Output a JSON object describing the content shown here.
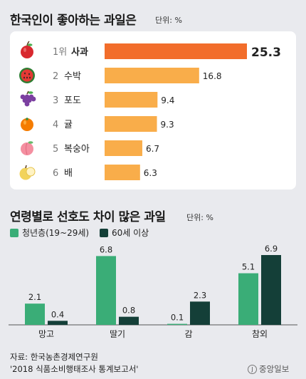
{
  "title1": "한국인이 좋아하는 과일은",
  "unit1": "단위: %",
  "title2": "연령별로 선호도 차이 많은 과일",
  "unit2": "단위: %",
  "legend": {
    "young": "청년층(19~29세)",
    "old": "60세 이상"
  },
  "colors": {
    "top_bar": "#f26d2b",
    "other_bars": "#f9ad4a",
    "young": "#3aad77",
    "old": "#143f38"
  },
  "chart_data": [
    {
      "type": "bar",
      "orientation": "horizontal",
      "title": "한국인이 좋아하는 과일은",
      "unit": "단위: %",
      "categories": [
        "사과",
        "수박",
        "포도",
        "귤",
        "복숭아",
        "배"
      ],
      "ranks": [
        "1위",
        "2",
        "3",
        "4",
        "5",
        "6"
      ],
      "icons": [
        "apple-icon",
        "watermelon-icon",
        "grape-icon",
        "tangerine-icon",
        "peach-icon",
        "pear-icon"
      ],
      "values": [
        25.3,
        16.8,
        9.4,
        9.3,
        6.7,
        6.3
      ],
      "value_labels": [
        "25.3",
        "16.8",
        "9.4",
        "9.3",
        "6.7",
        "6.3"
      ],
      "xlim": [
        0,
        25.3
      ]
    },
    {
      "type": "bar",
      "title": "연령별로 선호도 차이 많은 과일",
      "unit": "단위: %",
      "categories": [
        "망고",
        "딸기",
        "감",
        "참외"
      ],
      "series": [
        {
          "name": "청년층(19~29세)",
          "values": [
            2.1,
            6.8,
            0.1,
            5.1
          ],
          "labels": [
            "2.1",
            "6.8",
            "0.1",
            "5.1"
          ]
        },
        {
          "name": "60세 이상",
          "values": [
            0.4,
            0.8,
            2.3,
            6.9
          ],
          "labels": [
            "0.4",
            "0.8",
            "2.3",
            "6.9"
          ]
        }
      ],
      "ylim": [
        0,
        6.9
      ]
    }
  ],
  "source": {
    "line1": "자료: 한국농촌경제연구원",
    "line2": "'2018 식품소비행태조사 통계보고서'"
  },
  "logo_text": "중앙일보"
}
